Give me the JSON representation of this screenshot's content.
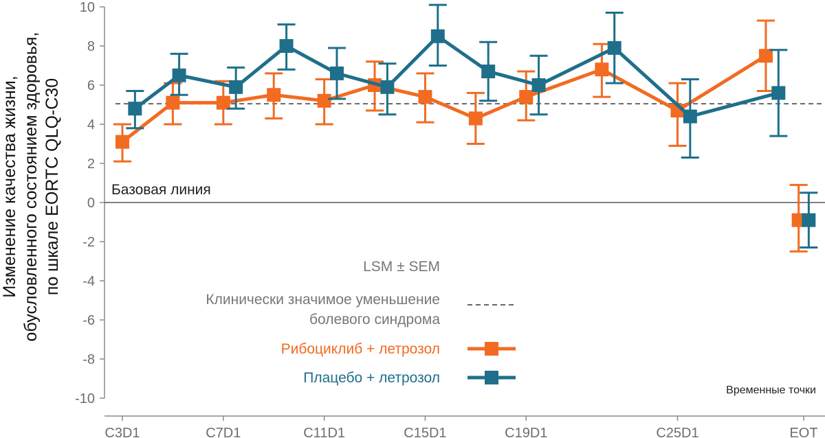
{
  "chart_data": {
    "type": "line",
    "ylabel": [
      "Изменение качества жизни,",
      "обусловленного состоянием здоровья,",
      "по шкале EORTC QLQ-C30"
    ],
    "xlabel": "Временные точки",
    "baseline_label": "Базовая линия",
    "ylim": [
      -10,
      10
    ],
    "yticks": [
      10,
      8,
      6,
      4,
      2,
      0,
      -2,
      -4,
      -6,
      -8,
      -10
    ],
    "xtick_labels": [
      {
        "x": 1,
        "label": "C3D1"
      },
      {
        "x": 5,
        "label": "C7D1"
      },
      {
        "x": 9,
        "label": "C11D1"
      },
      {
        "x": 13,
        "label": "C15D1"
      },
      {
        "x": 17,
        "label": "C19D1"
      },
      {
        "x": 23,
        "label": "C25D1"
      },
      {
        "x": 28,
        "label": "EOT"
      }
    ],
    "reference_line": {
      "y": 5.05,
      "label": [
        "Клинически значимое  уменьшение",
        "болевого синдрома"
      ]
    },
    "legend_title": "LSM ± SEM",
    "series": [
      {
        "name": "Рибоциклиб + летрозол",
        "color": "#f26b21",
        "points": [
          {
            "x": 1,
            "y": 3.1,
            "lo": 2.1,
            "hi": 4.0
          },
          {
            "x": 3,
            "y": 5.1,
            "lo": 4.0,
            "hi": 6.1
          },
          {
            "x": 5,
            "y": 5.1,
            "lo": 4.0,
            "hi": 6.2
          },
          {
            "x": 7,
            "y": 5.5,
            "lo": 4.3,
            "hi": 6.6
          },
          {
            "x": 9,
            "y": 5.2,
            "lo": 4.0,
            "hi": 6.3
          },
          {
            "x": 11,
            "y": 6.0,
            "lo": 4.7,
            "hi": 7.2
          },
          {
            "x": 13,
            "y": 5.4,
            "lo": 4.1,
            "hi": 6.6
          },
          {
            "x": 15,
            "y": 4.3,
            "lo": 3.0,
            "hi": 5.6
          },
          {
            "x": 17,
            "y": 5.4,
            "lo": 4.2,
            "hi": 6.7
          },
          {
            "x": 20,
            "y": 6.8,
            "lo": 5.4,
            "hi": 8.1
          },
          {
            "x": 23,
            "y": 4.7,
            "lo": 2.9,
            "hi": 6.1
          },
          {
            "x": 26.5,
            "y": 7.5,
            "lo": 5.7,
            "hi": 9.3
          }
        ],
        "eot": {
          "x": 27.8,
          "y": -0.9,
          "lo": -2.5,
          "hi": 0.9
        }
      },
      {
        "name": "Плацебо + летрозол",
        "color": "#1f6f8b",
        "points": [
          {
            "x": 1.5,
            "y": 4.8,
            "lo": 3.8,
            "hi": 5.7
          },
          {
            "x": 3.25,
            "y": 6.5,
            "lo": 5.5,
            "hi": 7.6
          },
          {
            "x": 5.5,
            "y": 5.9,
            "lo": 4.8,
            "hi": 6.9
          },
          {
            "x": 7.5,
            "y": 8.0,
            "lo": 6.8,
            "hi": 9.1
          },
          {
            "x": 9.5,
            "y": 6.6,
            "lo": 5.3,
            "hi": 7.9
          },
          {
            "x": 11.5,
            "y": 5.9,
            "lo": 4.5,
            "hi": 7.1
          },
          {
            "x": 13.5,
            "y": 8.5,
            "lo": 7.0,
            "hi": 10.1
          },
          {
            "x": 15.5,
            "y": 6.7,
            "lo": 5.2,
            "hi": 8.2
          },
          {
            "x": 17.5,
            "y": 6.0,
            "lo": 4.5,
            "hi": 7.5
          },
          {
            "x": 20.5,
            "y": 7.9,
            "lo": 6.1,
            "hi": 9.7
          },
          {
            "x": 23.5,
            "y": 4.4,
            "lo": 2.3,
            "hi": 6.3
          },
          {
            "x": 27,
            "y": 5.6,
            "lo": 3.4,
            "hi": 7.8
          }
        ],
        "eot": {
          "x": 28.2,
          "y": -0.9,
          "lo": -2.3,
          "hi": 0.5
        }
      }
    ]
  }
}
